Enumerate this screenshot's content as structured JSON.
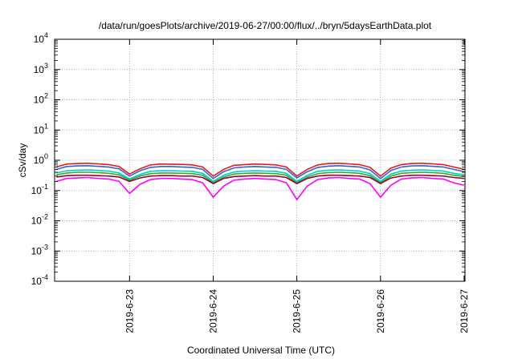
{
  "chart_data": {
    "type": "line",
    "title": "/data/run/goesPlots/archive/2019-06-27/00:00/flux/../bryn/5daysEarthData.plot",
    "xlabel": "Coordinated Universal Time (UTC)",
    "ylabel": "cSv/day",
    "yscale": "log",
    "ylim": [
      0.0001,
      10000
    ],
    "xlim": [
      "2019-06-22T02:30",
      "2019-06-27T00:15"
    ],
    "grid": true,
    "y_ticks": [
      {
        "base": "10",
        "exp": "-4"
      },
      {
        "base": "10",
        "exp": "-3"
      },
      {
        "base": "10",
        "exp": "-2"
      },
      {
        "base": "10",
        "exp": "-1"
      },
      {
        "base": "10",
        "exp": "0"
      },
      {
        "base": "10",
        "exp": "1"
      },
      {
        "base": "10",
        "exp": "2"
      },
      {
        "base": "10",
        "exp": "3"
      },
      {
        "base": "10",
        "exp": "4"
      }
    ],
    "x_ticks": [
      "2019-6-23",
      "2019-6-24",
      "2019-6-25",
      "2019-6-26",
      "2019-6-27"
    ],
    "x": [
      "2019-06-22T03:00",
      "2019-06-22T06:00",
      "2019-06-22T09:00",
      "2019-06-22T12:00",
      "2019-06-22T15:00",
      "2019-06-22T18:00",
      "2019-06-22T21:00",
      "2019-06-23T00:00",
      "2019-06-23T03:00",
      "2019-06-23T06:00",
      "2019-06-23T09:00",
      "2019-06-23T12:00",
      "2019-06-23T15:00",
      "2019-06-23T18:00",
      "2019-06-23T21:00",
      "2019-06-24T00:00",
      "2019-06-24T03:00",
      "2019-06-24T06:00",
      "2019-06-24T09:00",
      "2019-06-24T12:00",
      "2019-06-24T15:00",
      "2019-06-24T18:00",
      "2019-06-24T21:00",
      "2019-06-25T00:00",
      "2019-06-25T03:00",
      "2019-06-25T06:00",
      "2019-06-25T09:00",
      "2019-06-25T12:00",
      "2019-06-25T15:00",
      "2019-06-25T18:00",
      "2019-06-25T21:00",
      "2019-06-26T00:00",
      "2019-06-26T03:00",
      "2019-06-26T06:00",
      "2019-06-26T09:00",
      "2019-06-26T12:00",
      "2019-06-26T15:00",
      "2019-06-26T18:00",
      "2019-06-26T21:00",
      "2019-06-27T00:00"
    ],
    "series": [
      {
        "color": "#e41a1c",
        "values": [
          0.6,
          0.75,
          0.78,
          0.8,
          0.76,
          0.72,
          0.62,
          0.35,
          0.52,
          0.7,
          0.75,
          0.74,
          0.73,
          0.7,
          0.6,
          0.3,
          0.5,
          0.68,
          0.72,
          0.75,
          0.73,
          0.7,
          0.6,
          0.3,
          0.5,
          0.7,
          0.78,
          0.8,
          0.76,
          0.72,
          0.58,
          0.3,
          0.55,
          0.72,
          0.78,
          0.8,
          0.76,
          0.72,
          0.6,
          0.5
        ]
      },
      {
        "color": "#3366cc",
        "values": [
          0.5,
          0.62,
          0.65,
          0.66,
          0.63,
          0.6,
          0.52,
          0.3,
          0.45,
          0.58,
          0.62,
          0.62,
          0.6,
          0.58,
          0.5,
          0.25,
          0.42,
          0.56,
          0.6,
          0.62,
          0.6,
          0.58,
          0.5,
          0.26,
          0.42,
          0.58,
          0.64,
          0.66,
          0.63,
          0.6,
          0.48,
          0.25,
          0.46,
          0.6,
          0.65,
          0.66,
          0.63,
          0.6,
          0.5,
          0.42
        ]
      },
      {
        "color": "#00cccc",
        "values": [
          0.38,
          0.45,
          0.47,
          0.48,
          0.46,
          0.44,
          0.38,
          0.24,
          0.34,
          0.43,
          0.45,
          0.45,
          0.44,
          0.43,
          0.37,
          0.2,
          0.32,
          0.41,
          0.44,
          0.45,
          0.44,
          0.43,
          0.37,
          0.2,
          0.32,
          0.43,
          0.47,
          0.48,
          0.46,
          0.44,
          0.36,
          0.2,
          0.35,
          0.44,
          0.47,
          0.48,
          0.46,
          0.44,
          0.37,
          0.33
        ]
      },
      {
        "color": "#33aa33",
        "values": [
          0.33,
          0.38,
          0.4,
          0.4,
          0.39,
          0.37,
          0.33,
          0.22,
          0.3,
          0.36,
          0.38,
          0.38,
          0.37,
          0.36,
          0.32,
          0.18,
          0.28,
          0.35,
          0.37,
          0.38,
          0.37,
          0.36,
          0.32,
          0.18,
          0.28,
          0.36,
          0.39,
          0.4,
          0.39,
          0.37,
          0.31,
          0.18,
          0.3,
          0.37,
          0.39,
          0.4,
          0.39,
          0.37,
          0.32,
          0.29
        ]
      },
      {
        "color": "#990033",
        "values": [
          0.28,
          0.31,
          0.32,
          0.32,
          0.31,
          0.3,
          0.28,
          0.2,
          0.26,
          0.3,
          0.31,
          0.31,
          0.3,
          0.3,
          0.27,
          0.17,
          0.25,
          0.29,
          0.3,
          0.31,
          0.3,
          0.3,
          0.27,
          0.17,
          0.25,
          0.3,
          0.32,
          0.32,
          0.31,
          0.3,
          0.27,
          0.17,
          0.26,
          0.3,
          0.32,
          0.32,
          0.31,
          0.3,
          0.27,
          0.25
        ]
      },
      {
        "color": "#ff00ff",
        "values": [
          0.2,
          0.25,
          0.26,
          0.27,
          0.25,
          0.24,
          0.2,
          0.08,
          0.16,
          0.23,
          0.25,
          0.25,
          0.24,
          0.23,
          0.18,
          0.06,
          0.14,
          0.22,
          0.24,
          0.25,
          0.24,
          0.23,
          0.18,
          0.05,
          0.14,
          0.23,
          0.26,
          0.27,
          0.25,
          0.24,
          0.17,
          0.06,
          0.15,
          0.24,
          0.26,
          0.27,
          0.25,
          0.24,
          0.18,
          0.15
        ]
      }
    ]
  }
}
